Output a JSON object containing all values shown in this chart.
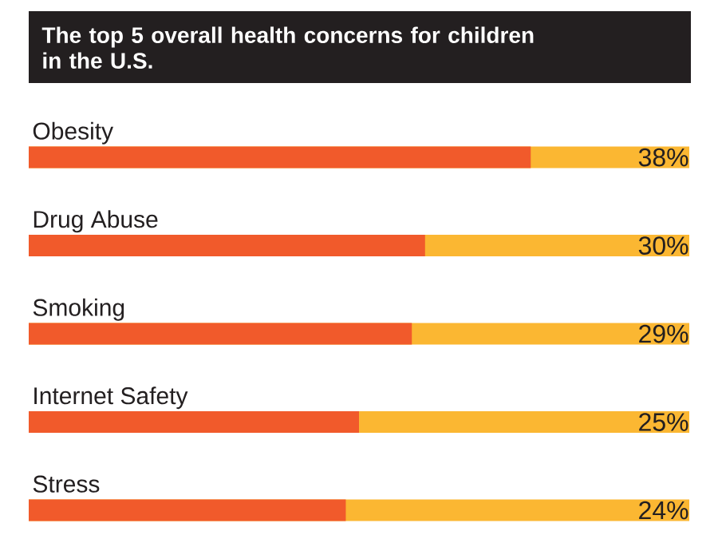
{
  "chart_data": {
    "type": "bar",
    "orientation": "horizontal",
    "title": "The top 5 overall health concerns for children in the U.S.",
    "categories": [
      "Obesity",
      "Drug Abuse",
      "Smoking",
      "Internet Safety",
      "Stress"
    ],
    "tick_labels": "y",
    "color": "#f15a2b",
    "values": [
      38,
      30,
      29,
      25,
      24
    ],
    "value_labels": [
      "38%",
      "30%",
      "29%",
      "25%",
      "24%"
    ],
    "bands": [
      {
        "axis": "x",
        "from": 0,
        "to": 50,
        "color": "#fbb732"
      },
      {
        "axis": "x",
        "from": 0,
        "to": 50,
        "color": "#fbb732"
      },
      {
        "axis": "x",
        "from": 0,
        "to": 50,
        "color": "#fbb732"
      },
      {
        "axis": "x",
        "from": 0,
        "to": 50,
        "color": "#fbb732"
      },
      {
        "axis": "x",
        "from": 0,
        "to": 50,
        "color": "#fbb732"
      }
    ]
  }
}
